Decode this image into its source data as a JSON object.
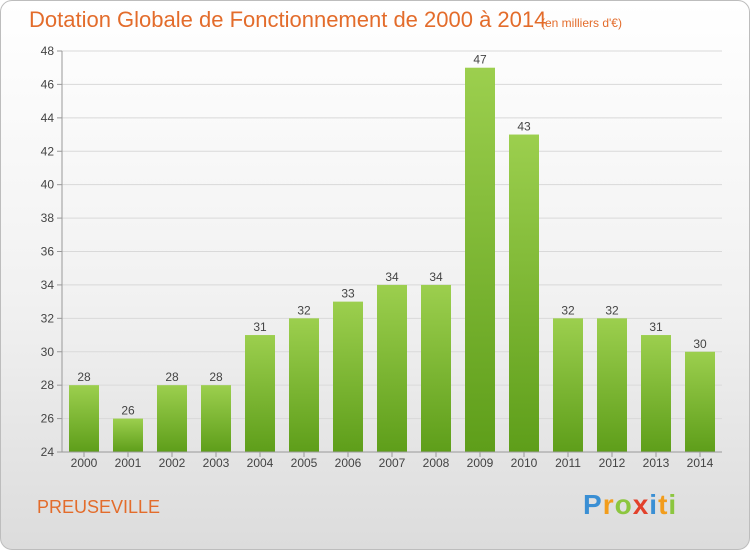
{
  "header": {
    "title": "Dotation Globale de Fonctionnement de 2000 à 2014",
    "unit": "(en milliers d'€)"
  },
  "footer": {
    "commune": "PREUSEVILLE",
    "logo": "Proxiti"
  },
  "colors": {
    "accent": "#e36c2b",
    "bar_top": "#9ccf4e",
    "bar_bottom": "#5e9e1a",
    "axis": "#999999",
    "grid": "#d9d9d9"
  },
  "chart_data": {
    "type": "bar",
    "title": "Dotation Globale de Fonctionnement de 2000 à 2014",
    "xlabel": "",
    "ylabel": "",
    "ylim": [
      24,
      48
    ],
    "yticks": [
      24,
      26,
      28,
      30,
      32,
      34,
      36,
      38,
      40,
      42,
      44,
      46,
      48
    ],
    "grid": true,
    "legend": "none",
    "categories": [
      "2000",
      "2001",
      "2002",
      "2003",
      "2004",
      "2005",
      "2006",
      "2007",
      "2008",
      "2009",
      "2010",
      "2011",
      "2012",
      "2013",
      "2014"
    ],
    "values": [
      28,
      26,
      28,
      28,
      31,
      32,
      33,
      34,
      34,
      47,
      43,
      32,
      32,
      31,
      30
    ]
  }
}
